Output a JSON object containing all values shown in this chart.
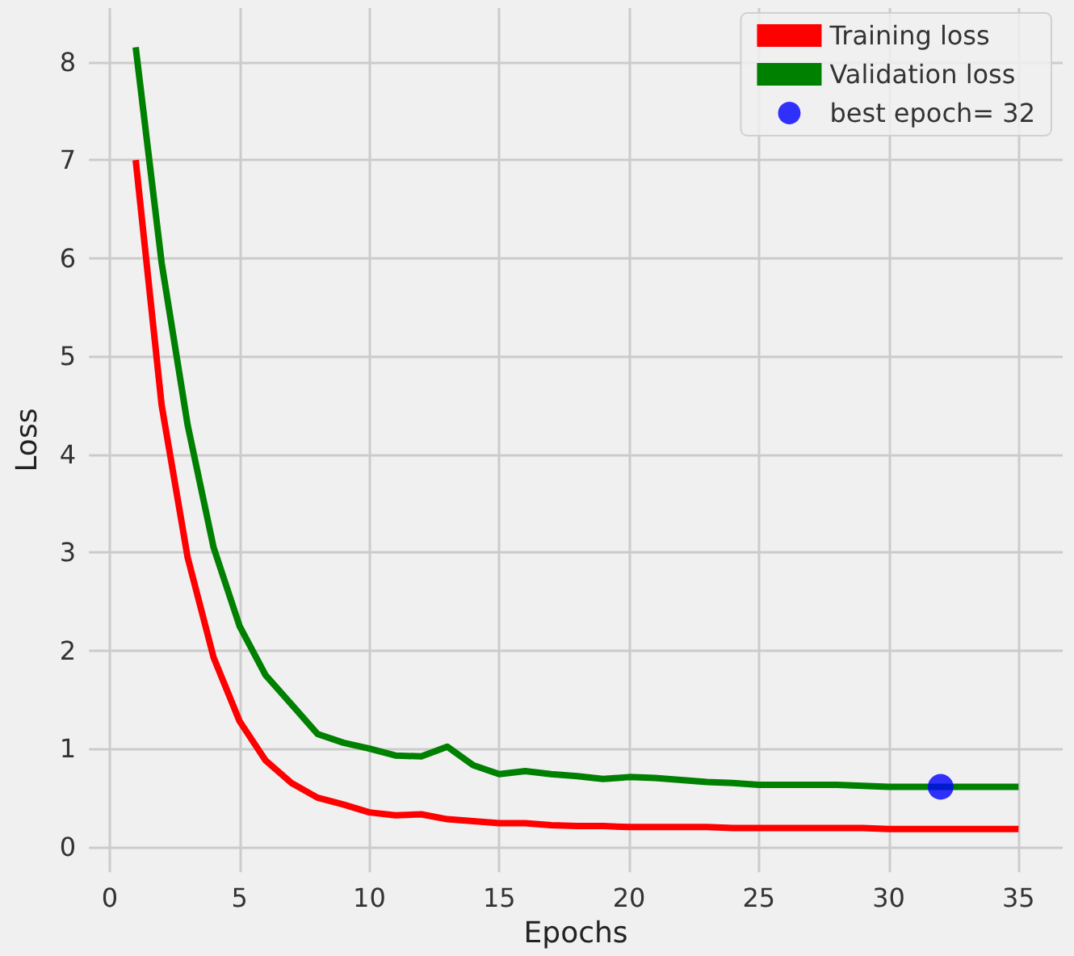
{
  "chart_data": {
    "type": "line",
    "xlabel": "Epochs",
    "ylabel": "Loss",
    "xlim": [
      -0.8,
      36.7
    ],
    "xticks": [
      0,
      5,
      10,
      15,
      20,
      25,
      30,
      35
    ],
    "ylim": [
      -0.26,
      8.55
    ],
    "yticks": [
      0,
      1,
      2,
      3,
      4,
      5,
      6,
      7,
      8
    ],
    "grid": true,
    "legend": "top right",
    "marker": "none",
    "line_style": "solid",
    "series": [
      {
        "name": "Training loss",
        "color": "#ff0000",
        "x": [
          1,
          2,
          3,
          4,
          5,
          6,
          7,
          8,
          9,
          10,
          11,
          12,
          13,
          14,
          15,
          16,
          17,
          18,
          19,
          20,
          21,
          22,
          23,
          24,
          25,
          26,
          27,
          28,
          29,
          30,
          31,
          32,
          33,
          34,
          35
        ],
        "values": [
          7.0,
          4.5,
          2.95,
          1.93,
          1.28,
          0.88,
          0.65,
          0.5,
          0.43,
          0.35,
          0.32,
          0.33,
          0.28,
          0.26,
          0.24,
          0.24,
          0.22,
          0.21,
          0.21,
          0.2,
          0.2,
          0.2,
          0.2,
          0.19,
          0.19,
          0.19,
          0.19,
          0.19,
          0.19,
          0.18,
          0.18,
          0.18,
          0.18,
          0.18,
          0.18
        ]
      },
      {
        "name": "Validation loss",
        "color": "#008000",
        "x": [
          1,
          2,
          3,
          4,
          5,
          6,
          7,
          8,
          9,
          10,
          11,
          12,
          13,
          14,
          15,
          16,
          17,
          18,
          19,
          20,
          21,
          22,
          23,
          24,
          25,
          26,
          27,
          28,
          29,
          30,
          31,
          32,
          33,
          34,
          35
        ],
        "values": [
          8.15,
          5.95,
          4.3,
          3.05,
          2.25,
          1.75,
          1.45,
          1.15,
          1.06,
          1.0,
          0.93,
          0.92,
          1.02,
          0.83,
          0.74,
          0.77,
          0.74,
          0.72,
          0.69,
          0.71,
          0.7,
          0.68,
          0.66,
          0.65,
          0.63,
          0.63,
          0.63,
          0.63,
          0.62,
          0.61,
          0.61,
          0.61,
          0.61,
          0.61,
          0.61
        ]
      },
      {
        "name": "best epoch= 32",
        "type": "scatter",
        "marker": "circle",
        "color": "#0000ff",
        "x": [
          32
        ],
        "values": [
          0.61
        ]
      }
    ]
  }
}
